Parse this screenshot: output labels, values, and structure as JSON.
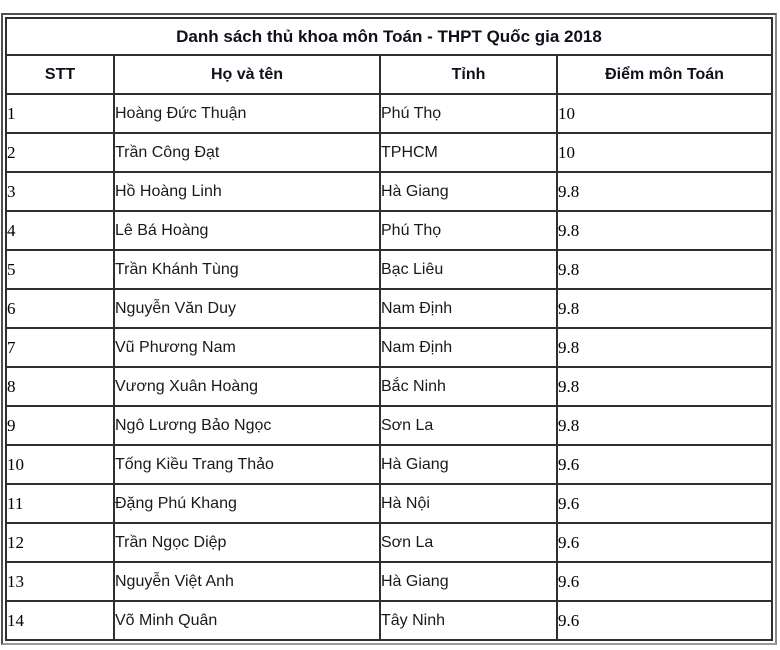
{
  "title": "Danh sách thủ khoa môn Toán - THPT Quốc gia 2018",
  "table": {
    "headers": [
      "STT",
      "Họ và tên",
      "Tỉnh",
      "Điểm môn Toán"
    ],
    "rows": [
      {
        "stt": "1",
        "name": "Hoàng Đức Thuận",
        "province": "Phú Thọ",
        "score": "10"
      },
      {
        "stt": "2",
        "name": "Trần Công Đạt",
        "province": "TPHCM",
        "score": "10"
      },
      {
        "stt": "3",
        "name": "Hồ Hoàng Linh",
        "province": "Hà Giang",
        "score": "9.8"
      },
      {
        "stt": "4",
        "name": "Lê Bá Hoàng",
        "province": "Phú Thọ",
        "score": "9.8"
      },
      {
        "stt": "5",
        "name": "Trần Khánh Tùng",
        "province": "Bạc Liêu",
        "score": "9.8"
      },
      {
        "stt": "6",
        "name": "Nguyễn Văn Duy",
        "province": "Nam Định",
        "score": "9.8"
      },
      {
        "stt": "7",
        "name": "Vũ Phương Nam",
        "province": "Nam Định",
        "score": "9.8"
      },
      {
        "stt": "8",
        "name": "Vương Xuân Hoàng",
        "province": "Bắc Ninh",
        "score": "9.8"
      },
      {
        "stt": "9",
        "name": "Ngô Lương Bảo Ngọc",
        "province": "Sơn La",
        "score": "9.8"
      },
      {
        "stt": "10",
        "name": "Tống Kiều Trang Thảo",
        "province": "Hà Giang",
        "score": "9.6"
      },
      {
        "stt": "11",
        "name": "Đặng Phú Khang",
        "province": "Hà Nội",
        "score": "9.6"
      },
      {
        "stt": "12",
        "name": "Trần Ngọc Diệp",
        "province": "Sơn La",
        "score": "9.6"
      },
      {
        "stt": "13",
        "name": "Nguyễn Việt Anh",
        "province": "Hà Giang",
        "score": "9.6"
      },
      {
        "stt": "14",
        "name": "Võ Minh Quân",
        "province": "Tây Ninh",
        "score": "9.6"
      }
    ]
  },
  "colors": {
    "cell_border": "#2f2f2f",
    "frame_border": "#4f4f4f",
    "sans_text": "#19191f",
    "serif_text": "#000000",
    "heading_text": "#10101a",
    "background": "#ffffff"
  }
}
